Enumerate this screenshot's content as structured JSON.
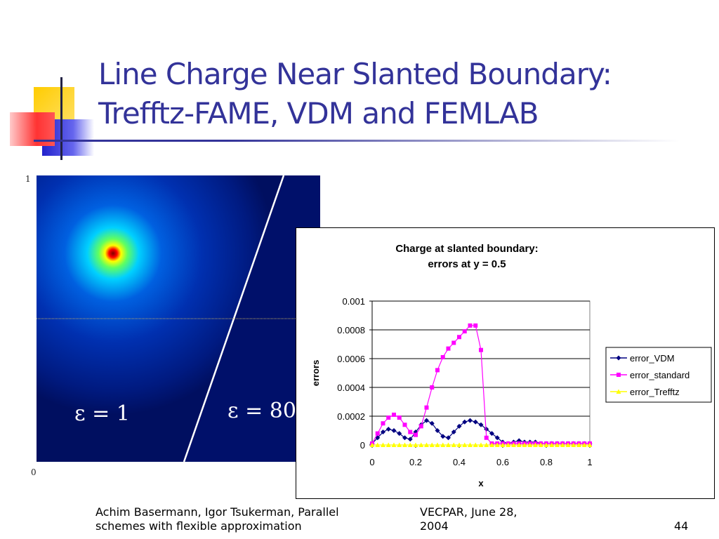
{
  "slide": {
    "title_line1": "Line Charge Near Slanted Boundary:",
    "title_line2": "Trefftz-FAME, VDM and FEMLAB",
    "accent_colors": {
      "title": "#333399",
      "deco_yellow": "#ffcc00",
      "deco_red": "#ff3333",
      "deco_blue": "#3333cc"
    }
  },
  "field_plot": {
    "y_top_label": "1",
    "y_bottom_label": "0",
    "label_left": "ε = 1",
    "label_right": "ε = 80"
  },
  "chart_data": {
    "type": "line",
    "title": "Charge at slanted boundary:",
    "subtitle": "errors at y = 0.5",
    "xlabel": "x",
    "ylabel": "errors",
    "xlim": [
      0,
      1
    ],
    "ylim": [
      0,
      0.001
    ],
    "xticks": [
      "0",
      "0.2",
      "0.4",
      "0.6",
      "0.8",
      "1"
    ],
    "yticks": [
      "0",
      "0.0002",
      "0.0004",
      "0.0006",
      "0.0008",
      "0.001"
    ],
    "grid": "horizontal",
    "legend_position": "right",
    "series": [
      {
        "name": "error_VDM",
        "color": "#000080",
        "marker": "diamond",
        "x": [
          0,
          0.025,
          0.05,
          0.075,
          0.1,
          0.125,
          0.15,
          0.175,
          0.2,
          0.225,
          0.25,
          0.275,
          0.3,
          0.325,
          0.35,
          0.375,
          0.4,
          0.425,
          0.45,
          0.475,
          0.5,
          0.525,
          0.55,
          0.575,
          0.6,
          0.625,
          0.65,
          0.675,
          0.7,
          0.725,
          0.75,
          0.775,
          0.8,
          0.825,
          0.85,
          0.875,
          0.9,
          0.925,
          0.95,
          0.975,
          1
        ],
        "y": [
          1e-05,
          5e-05,
          9e-05,
          0.00011,
          0.0001,
          8e-05,
          5e-05,
          4e-05,
          9e-05,
          0.00014,
          0.00017,
          0.00015,
          0.0001,
          6e-05,
          5e-05,
          9e-05,
          0.00013,
          0.00016,
          0.00017,
          0.00016,
          0.00014,
          0.00011,
          8e-05,
          5e-05,
          2e-05,
          1e-05,
          2e-05,
          3e-05,
          2e-05,
          2e-05,
          2e-05,
          1e-05,
          1e-05,
          1e-05,
          1e-05,
          1e-05,
          1e-05,
          1e-05,
          1e-05,
          1e-05,
          1e-05
        ]
      },
      {
        "name": "error_standard",
        "color": "#ff00ff",
        "marker": "square",
        "x": [
          0,
          0.025,
          0.05,
          0.075,
          0.1,
          0.125,
          0.15,
          0.175,
          0.2,
          0.225,
          0.25,
          0.275,
          0.3,
          0.325,
          0.35,
          0.375,
          0.4,
          0.425,
          0.45,
          0.475,
          0.5,
          0.525,
          0.55,
          0.575,
          0.6,
          0.625,
          0.65,
          0.675,
          0.7,
          0.725,
          0.75,
          0.775,
          0.8,
          0.825,
          0.85,
          0.875,
          0.9,
          0.925,
          0.95,
          0.975,
          1
        ],
        "y": [
          1e-05,
          8e-05,
          0.00015,
          0.00019,
          0.00021,
          0.00019,
          0.00014,
          9e-05,
          7e-05,
          0.00013,
          0.00026,
          0.0004,
          0.00052,
          0.00061,
          0.00067,
          0.00071,
          0.00075,
          0.00079,
          0.00083,
          0.00083,
          0.00066,
          5e-05,
          1e-05,
          1e-05,
          1e-05,
          1e-05,
          1e-05,
          1e-05,
          1e-05,
          1e-05,
          1e-05,
          1e-05,
          1e-05,
          1e-05,
          1e-05,
          1e-05,
          1e-05,
          1e-05,
          1e-05,
          1e-05,
          1e-05
        ]
      },
      {
        "name": "error_Trefftz",
        "color": "#ffff00",
        "marker": "triangle",
        "x": [
          0,
          0.025,
          0.05,
          0.075,
          0.1,
          0.125,
          0.15,
          0.175,
          0.2,
          0.225,
          0.25,
          0.275,
          0.3,
          0.325,
          0.35,
          0.375,
          0.4,
          0.425,
          0.45,
          0.475,
          0.5,
          0.525,
          0.55,
          0.575,
          0.6,
          0.625,
          0.65,
          0.675,
          0.7,
          0.725,
          0.75,
          0.775,
          0.8,
          0.825,
          0.85,
          0.875,
          0.9,
          0.925,
          0.95,
          0.975,
          1
        ],
        "y": [
          0,
          0,
          0,
          0,
          0,
          0,
          0,
          0,
          0,
          0,
          0,
          0,
          0,
          0,
          0,
          0,
          0,
          0,
          0,
          0,
          0,
          0,
          0,
          0,
          0,
          0,
          0,
          0,
          0,
          0,
          0,
          0,
          0,
          0,
          0,
          0,
          0,
          0,
          0,
          0,
          0
        ]
      }
    ]
  },
  "footer": {
    "authors_line1": "Achim Basermann, Igor Tsukerman, Parallel",
    "authors_line2": "schemes with flexible approximation",
    "venue_line1": "VECPAR, June 28,",
    "venue_line2": "2004",
    "page_number": "44"
  }
}
